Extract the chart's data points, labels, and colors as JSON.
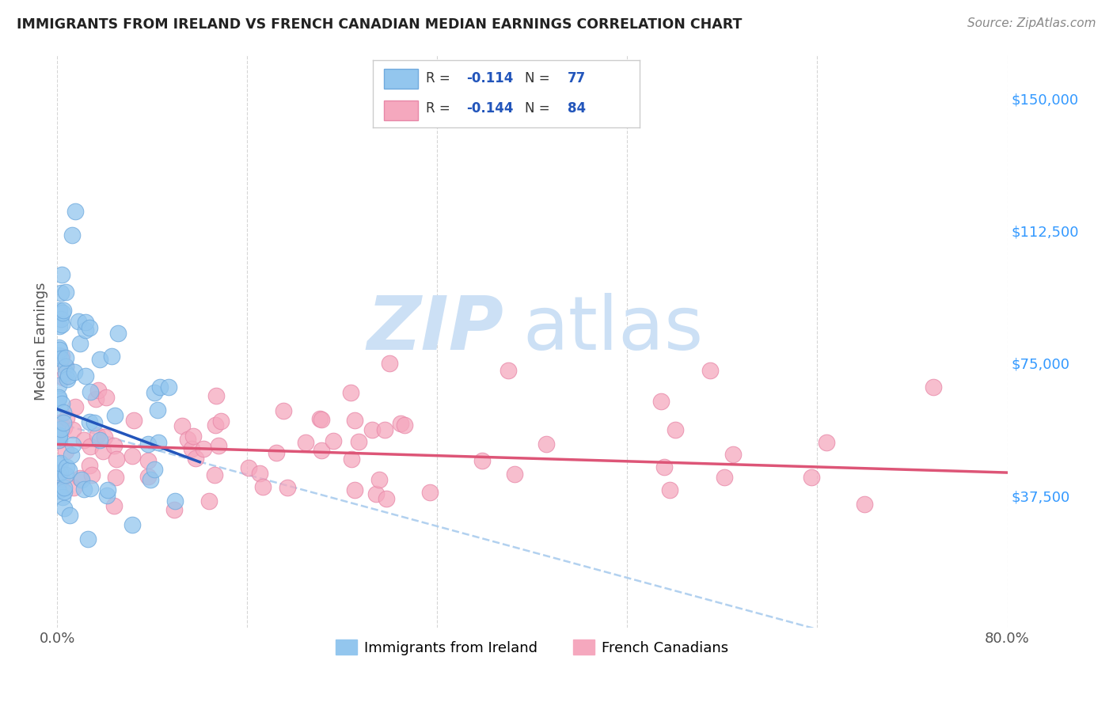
{
  "title": "IMMIGRANTS FROM IRELAND VS FRENCH CANADIAN MEDIAN EARNINGS CORRELATION CHART",
  "source": "Source: ZipAtlas.com",
  "ylabel": "Median Earnings",
  "xmin": 0.0,
  "xmax": 0.8,
  "ymin": 0,
  "ymax": 162500,
  "yticks": [
    0,
    37500,
    75000,
    112500,
    150000
  ],
  "ytick_labels": [
    "",
    "$37,500",
    "$75,000",
    "$112,500",
    "$150,000"
  ],
  "xtick_positions": [
    0.0,
    0.16,
    0.32,
    0.48,
    0.64,
    0.8
  ],
  "xtick_labels": [
    "0.0%",
    "",
    "",
    "",
    "",
    "80.0%"
  ],
  "series1_label": "Immigrants from Ireland",
  "series2_label": "French Canadians",
  "series1_color": "#93c6ee",
  "series2_color": "#f5a8be",
  "series1_edge_color": "#70aade",
  "series2_edge_color": "#e888a8",
  "series1_line_color": "#2255bb",
  "series2_line_color": "#dd5577",
  "dashed_line_color": "#aaccee",
  "r1": -0.114,
  "n1": 77,
  "r2": -0.144,
  "n2": 84,
  "legend_text_color": "#333333",
  "legend_value_color": "#2255bb",
  "background_color": "#ffffff",
  "watermark_zip": "ZIP",
  "watermark_atlas": "atlas",
  "watermark_color_zip": "#cce0f5",
  "watermark_color_atlas": "#cce0f5",
  "grid_color": "#cccccc",
  "title_color": "#222222",
  "ylabel_color": "#555555",
  "ytick_color": "#3399ff",
  "source_color": "#888888"
}
